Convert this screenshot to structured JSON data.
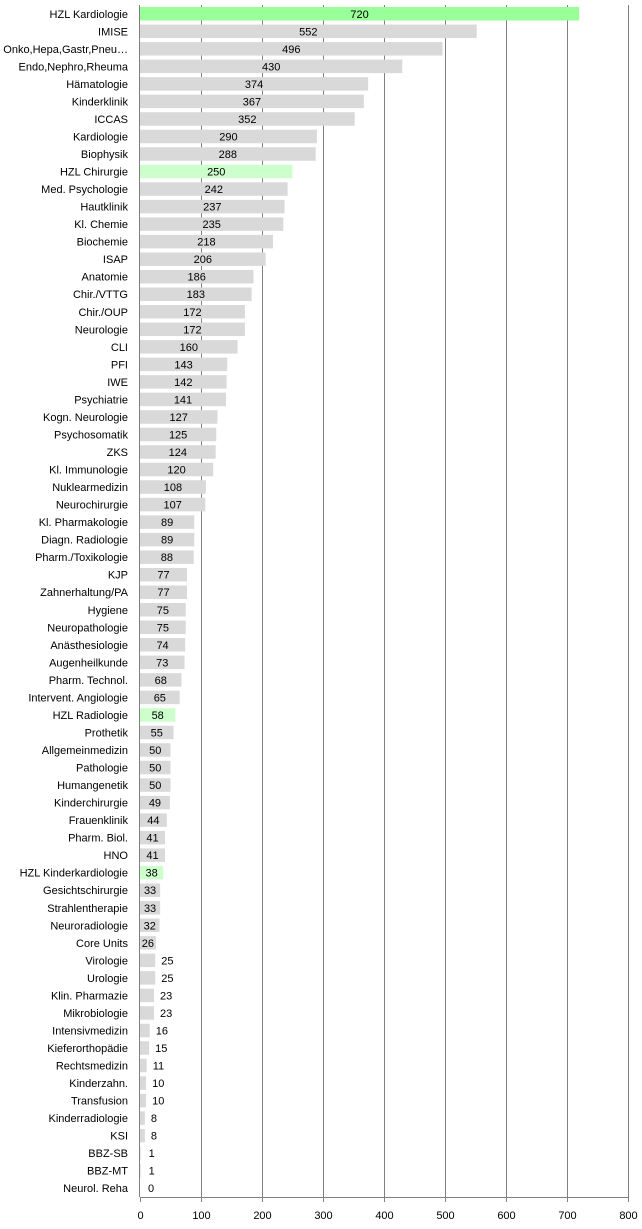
{
  "chart_data": {
    "type": "bar",
    "orientation": "horizontal",
    "title": "",
    "xlabel": "",
    "ylabel": "",
    "xlim": [
      0,
      800
    ],
    "x_ticks": [
      0,
      100,
      200,
      300,
      400,
      500,
      600,
      700,
      800
    ],
    "grid": "vertical",
    "colors": {
      "default": "#d9d9d9",
      "highlight": "#99ff99",
      "highlight_light": "#ccffcc",
      "grid": "#808080"
    },
    "categories": [
      "HZL Kardiologie",
      "IMISE",
      "Onko,Hepa,Gastr,Pneu…",
      "Endo,Nephro,Rheuma",
      "Hämatologie",
      "Kinderklinik",
      "ICCAS",
      "Kardiologie",
      "Biophysik",
      "HZL Chirurgie",
      "Med. Psychologie",
      "Hautklinik",
      "Kl. Chemie",
      "Biochemie",
      "ISAP",
      "Anatomie",
      "Chir./VTTG",
      "Chir./OUP",
      "Neurologie",
      "CLI",
      "PFI",
      "IWE",
      "Psychiatrie",
      "Kogn. Neurologie",
      "Psychosomatik",
      "ZKS",
      "Kl. Immunologie",
      "Nuklearmedizin",
      "Neurochirurgie",
      "Kl. Pharmakologie",
      "Diagn. Radiologie",
      "Pharm./Toxikologie",
      "KJP",
      "Zahnerhaltung/PA",
      "Hygiene",
      "Neuropathologie",
      "Anästhesiologie",
      "Augenheilkunde",
      "Pharm. Technol.",
      "Intervent. Angiologie",
      "HZL Radiologie",
      "Prothetik",
      "Allgemeinmedizin",
      "Pathologie",
      "Humangenetik",
      "Kinderchirurgie",
      "Frauenklinik",
      "Pharm. Biol.",
      "HNO",
      "HZL Kinderkardiologie",
      "Gesichtschirurgie",
      "Strahlentherapie",
      "Neuroradiologie",
      "Core Units",
      "Virologie",
      "Urologie",
      "Klin. Pharmazie",
      "Mikrobiologie",
      "Intensivmedizin",
      "Kieferorthopädie",
      "Rechtsmedizin",
      "Kinderzahn.",
      "Transfusion",
      "Kinderradiologie",
      "KSI",
      "BBZ-SB",
      "BBZ-MT",
      "Neurol. Reha"
    ],
    "values": [
      720,
      552,
      496,
      430,
      374,
      367,
      352,
      290,
      288,
      250,
      242,
      237,
      235,
      218,
      206,
      186,
      183,
      172,
      172,
      160,
      143,
      142,
      141,
      127,
      125,
      124,
      120,
      108,
      107,
      89,
      89,
      88,
      77,
      77,
      75,
      75,
      74,
      73,
      68,
      65,
      58,
      55,
      50,
      50,
      50,
      49,
      44,
      41,
      41,
      38,
      33,
      33,
      32,
      26,
      25,
      25,
      23,
      23,
      16,
      15,
      11,
      10,
      10,
      8,
      8,
      1,
      1,
      0
    ],
    "bar_colors": [
      "highlight",
      "default",
      "default",
      "default",
      "default",
      "default",
      "default",
      "default",
      "default",
      "highlight_light",
      "default",
      "default",
      "default",
      "default",
      "default",
      "default",
      "default",
      "default",
      "default",
      "default",
      "default",
      "default",
      "default",
      "default",
      "default",
      "default",
      "default",
      "default",
      "default",
      "default",
      "default",
      "default",
      "default",
      "default",
      "default",
      "default",
      "default",
      "default",
      "default",
      "default",
      "highlight_light",
      "default",
      "default",
      "default",
      "default",
      "default",
      "default",
      "default",
      "default",
      "highlight_light",
      "default",
      "default",
      "default",
      "default",
      "default",
      "default",
      "default",
      "default",
      "default",
      "default",
      "default",
      "default",
      "default",
      "default",
      "default",
      "default",
      "default",
      "default"
    ]
  }
}
